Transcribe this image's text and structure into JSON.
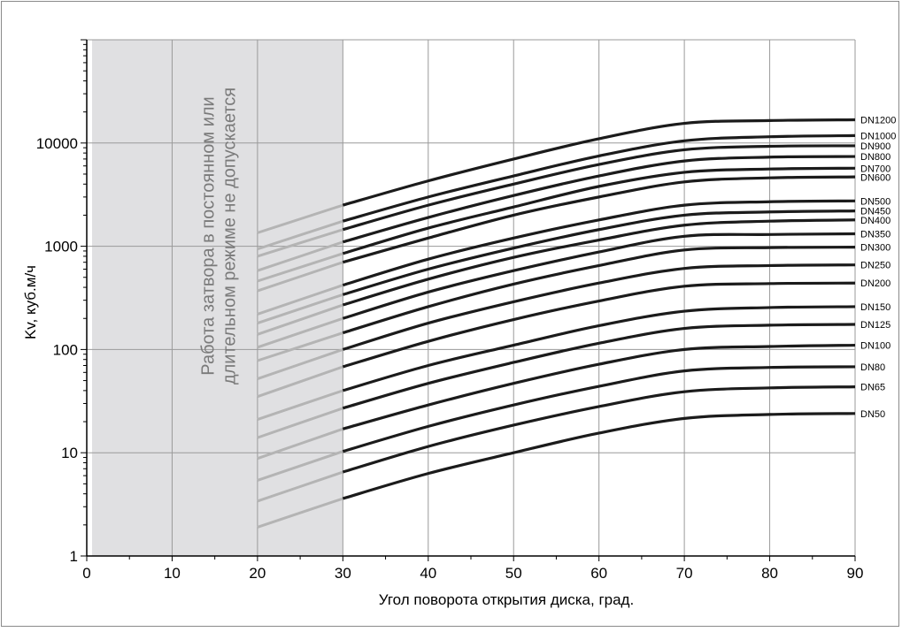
{
  "chart_data": {
    "type": "line",
    "title": "",
    "xlabel": "Угол поворота открытия диска, град.",
    "ylabel": "Kv, куб.м/ч",
    "x_scale": "linear",
    "y_scale": "log",
    "xlim": [
      0,
      90
    ],
    "ylim": [
      1,
      100000
    ],
    "x_ticks": [
      0,
      10,
      20,
      30,
      40,
      50,
      60,
      70,
      80,
      90
    ],
    "y_ticks": [
      1,
      10,
      100,
      1000,
      10000
    ],
    "y_tick_labels": [
      "1",
      "10",
      "100",
      "1000",
      "10000"
    ],
    "grid": true,
    "shaded_region": {
      "x_range": [
        0,
        30
      ],
      "color": "#e0e0e2",
      "note_lines": [
        "Работа затвора в постоянном или",
        "длительном режиме не допускается"
      ]
    },
    "colors": {
      "main": "#1b1b1b",
      "restricted": "#b4b4b4",
      "grid": "#9a9a9a",
      "shade": "#e0e0e2"
    },
    "restricted_x_range": [
      20,
      30
    ],
    "series": [
      {
        "name": "DN1200",
        "x": [
          20,
          30,
          40,
          50,
          60,
          70,
          80,
          90
        ],
        "values": [
          1350,
          2500,
          4300,
          7000,
          11000,
          15500,
          16500,
          16800
        ]
      },
      {
        "name": "DN1000",
        "x": [
          20,
          30,
          40,
          50,
          60,
          70,
          80,
          90
        ],
        "values": [
          940,
          1750,
          3000,
          4800,
          7500,
          10500,
          11500,
          11800
        ]
      },
      {
        "name": "DN900",
        "x": [
          20,
          30,
          40,
          50,
          60,
          70,
          80,
          90
        ],
        "values": [
          800,
          1450,
          2500,
          4000,
          6200,
          8600,
          9300,
          9400
        ]
      },
      {
        "name": "DN800",
        "x": [
          20,
          30,
          40,
          50,
          60,
          70,
          80,
          90
        ],
        "values": [
          580,
          1100,
          1900,
          3100,
          4800,
          6700,
          7300,
          7400
        ]
      },
      {
        "name": "DN700",
        "x": [
          20,
          30,
          40,
          50,
          60,
          70,
          80,
          90
        ],
        "values": [
          460,
          850,
          1500,
          2400,
          3800,
          5200,
          5600,
          5700
        ]
      },
      {
        "name": "DN600",
        "x": [
          20,
          30,
          40,
          50,
          60,
          70,
          80,
          90
        ],
        "values": [
          370,
          700,
          1200,
          2000,
          3000,
          4200,
          4600,
          4700
        ]
      },
      {
        "name": "DN500",
        "x": [
          20,
          30,
          40,
          50,
          60,
          70,
          80,
          90
        ],
        "values": [
          220,
          420,
          750,
          1200,
          1800,
          2500,
          2700,
          2750
        ]
      },
      {
        "name": "DN450",
        "x": [
          20,
          30,
          40,
          50,
          60,
          70,
          80,
          90
        ],
        "values": [
          180,
          340,
          600,
          960,
          1450,
          2000,
          2150,
          2200
        ]
      },
      {
        "name": "DN400",
        "x": [
          20,
          30,
          40,
          50,
          60,
          70,
          80,
          90
        ],
        "values": [
          140,
          270,
          480,
          780,
          1150,
          1600,
          1750,
          1800
        ]
      },
      {
        "name": "DN350",
        "x": [
          20,
          30,
          40,
          50,
          60,
          70,
          80,
          90
        ],
        "values": [
          105,
          200,
          360,
          580,
          880,
          1250,
          1300,
          1320
        ]
      },
      {
        "name": "DN300",
        "x": [
          20,
          30,
          40,
          50,
          60,
          70,
          80,
          90
        ],
        "values": [
          78,
          145,
          260,
          430,
          650,
          920,
          970,
          980
        ]
      },
      {
        "name": "DN250",
        "x": [
          20,
          30,
          40,
          50,
          60,
          70,
          80,
          90
        ],
        "values": [
          52,
          100,
          180,
          290,
          440,
          610,
          650,
          660
        ]
      },
      {
        "name": "DN200",
        "x": [
          20,
          30,
          40,
          50,
          60,
          70,
          80,
          90
        ],
        "values": [
          35,
          68,
          120,
          195,
          295,
          410,
          435,
          440
        ]
      },
      {
        "name": "DN150",
        "x": [
          20,
          30,
          40,
          50,
          60,
          70,
          80,
          90
        ],
        "values": [
          21,
          40,
          70,
          110,
          170,
          235,
          255,
          260
        ]
      },
      {
        "name": "DN125",
        "x": [
          20,
          30,
          40,
          50,
          60,
          70,
          80,
          90
        ],
        "values": [
          14,
          27,
          47,
          75,
          115,
          160,
          172,
          175
        ]
      },
      {
        "name": "DN100",
        "x": [
          20,
          30,
          40,
          50,
          60,
          70,
          80,
          90
        ],
        "values": [
          8.8,
          17,
          29,
          47,
          72,
          100,
          107,
          110
        ]
      },
      {
        "name": "DN80",
        "x": [
          20,
          30,
          40,
          50,
          60,
          70,
          80,
          90
        ],
        "values": [
          5.4,
          10.3,
          18,
          29,
          44,
          62,
          67,
          68
        ]
      },
      {
        "name": "DN65",
        "x": [
          20,
          30,
          40,
          50,
          60,
          70,
          80,
          90
        ],
        "values": [
          3.4,
          6.5,
          11.5,
          18.5,
          28,
          39,
          42.5,
          43.5
        ]
      },
      {
        "name": "DN50",
        "x": [
          20,
          30,
          40,
          50,
          60,
          70,
          80,
          90
        ],
        "values": [
          1.9,
          3.6,
          6.3,
          10,
          15.5,
          21.5,
          23.5,
          24
        ]
      }
    ]
  }
}
